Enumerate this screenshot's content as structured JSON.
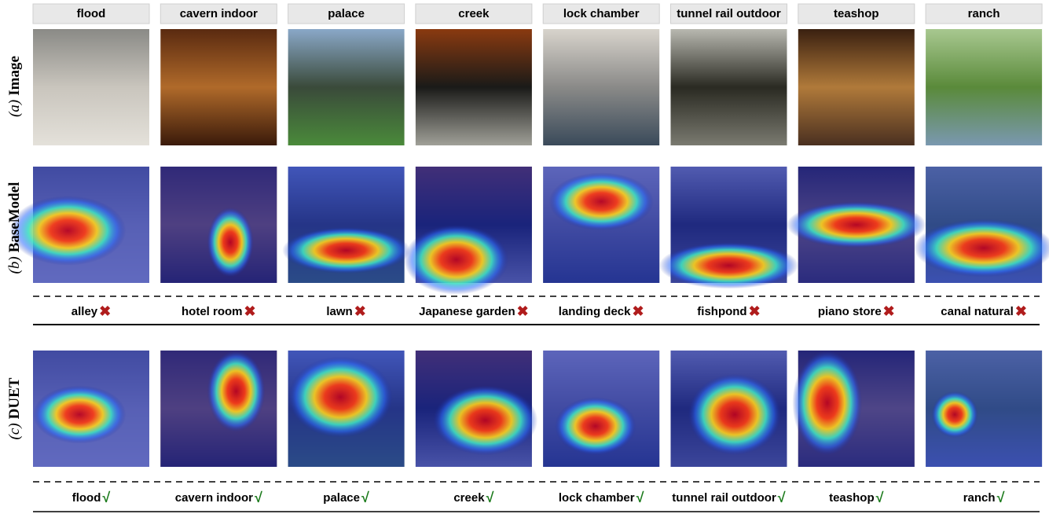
{
  "row_labels": [
    {
      "tag": "(a)",
      "name": "Image"
    },
    {
      "tag": "(b)",
      "name": "BaseModel"
    },
    {
      "tag": "(c)",
      "name": "DUET"
    }
  ],
  "columns": [
    {
      "header": "flood",
      "baseline": {
        "label": "alley",
        "mark": "✖"
      },
      "duet": {
        "label": "flood",
        "mark": "√"
      }
    },
    {
      "header": "cavern indoor",
      "baseline": {
        "label": "hotel room",
        "mark": "✖"
      },
      "duet": {
        "label": "cavern indoor",
        "mark": "√"
      }
    },
    {
      "header": "palace",
      "baseline": {
        "label": "lawn",
        "mark": "✖"
      },
      "duet": {
        "label": "palace",
        "mark": "√"
      }
    },
    {
      "header": "creek",
      "baseline": {
        "label": "Japanese garden",
        "mark": "✖"
      },
      "duet": {
        "label": "creek",
        "mark": "√"
      }
    },
    {
      "header": "lock chamber",
      "baseline": {
        "label": "landing deck",
        "mark": "✖"
      },
      "duet": {
        "label": "lock chamber",
        "mark": "√"
      }
    },
    {
      "header": "tunnel rail outdoor",
      "baseline": {
        "label": "fishpond",
        "mark": "✖"
      },
      "duet": {
        "label": "tunnel rail outdoor",
        "mark": "√"
      }
    },
    {
      "header": "teashop",
      "baseline": {
        "label": "piano store",
        "mark": "✖"
      },
      "duet": {
        "label": "teashop",
        "mark": "√"
      }
    },
    {
      "header": "ranch",
      "baseline": {
        "label": "canal natural",
        "mark": "✖"
      },
      "duet": {
        "label": "ranch",
        "mark": "√"
      }
    }
  ]
}
